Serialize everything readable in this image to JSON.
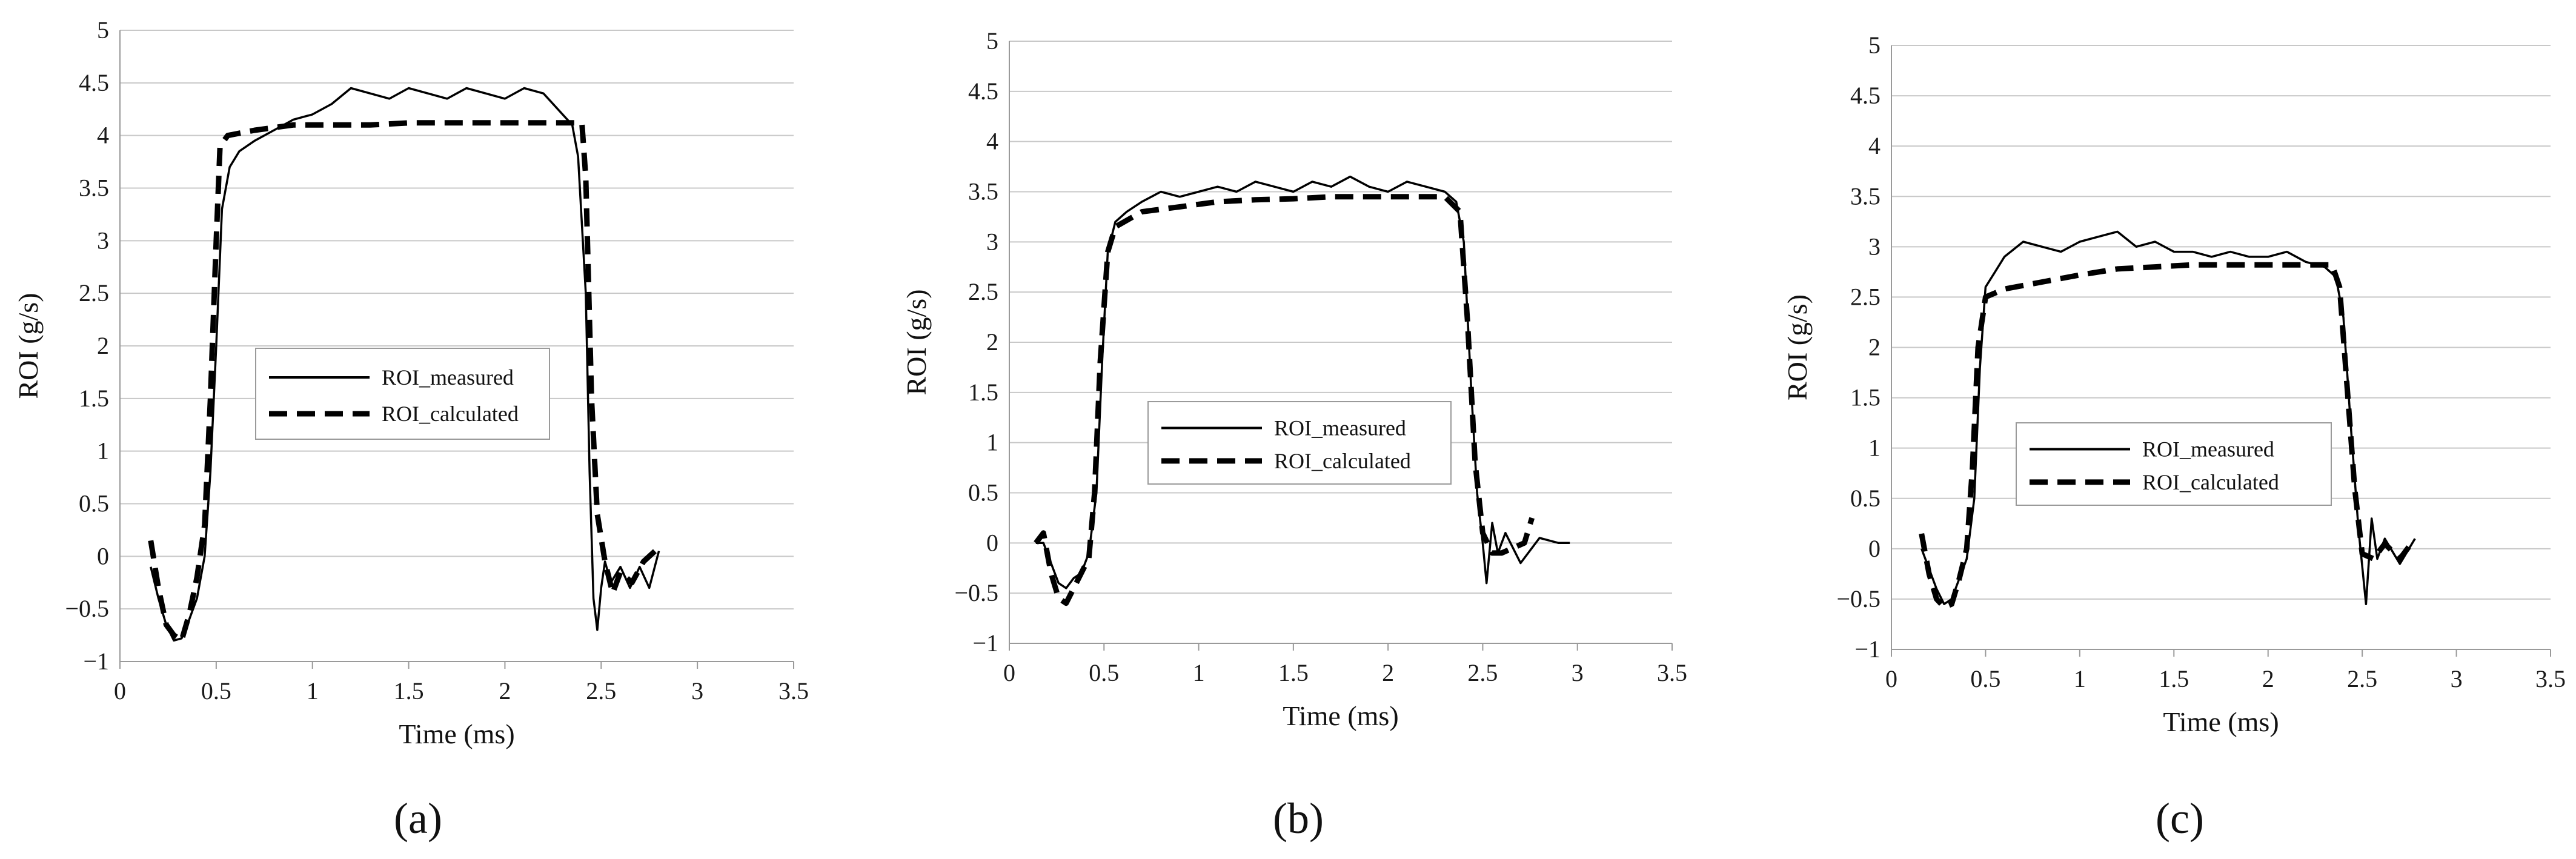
{
  "figure_captions": [
    "(a)",
    "(b)",
    "(c)"
  ],
  "chart_data": [
    {
      "type": "line",
      "panel": "a",
      "caption": "(a)",
      "xlabel": "Time (ms)",
      "ylabel": "ROI (g/s)",
      "xlim": [
        0,
        3.5
      ],
      "ylim": [
        -1,
        5
      ],
      "xticks": [
        0,
        0.5,
        1,
        1.5,
        2,
        2.5,
        3,
        3.5
      ],
      "yticks": [
        -1,
        -0.5,
        0,
        0.5,
        1,
        1.5,
        2,
        2.5,
        3,
        3.5,
        4,
        4.5,
        5
      ],
      "xtick_labels": [
        "0",
        "0.5",
        "1",
        "1.5",
        "2",
        "2.5",
        "3",
        "3.5"
      ],
      "ytick_labels": [
        "−1",
        "−0.5",
        "0",
        "0.5",
        "1",
        "1.5",
        "2",
        "2.5",
        "3",
        "3.5",
        "4",
        "4.5",
        "5"
      ],
      "grid": "horizontal",
      "legend": [
        "ROI_measured",
        "ROI_calculated"
      ],
      "legend_position": "center-left",
      "series": [
        {
          "name": "ROI_measured",
          "style": "solid",
          "points": [
            [
              0.16,
              -0.1
            ],
            [
              0.2,
              -0.4
            ],
            [
              0.24,
              -0.65
            ],
            [
              0.28,
              -0.8
            ],
            [
              0.32,
              -0.78
            ],
            [
              0.36,
              -0.6
            ],
            [
              0.4,
              -0.4
            ],
            [
              0.44,
              0.0
            ],
            [
              0.47,
              0.8
            ],
            [
              0.5,
              2.0
            ],
            [
              0.53,
              3.3
            ],
            [
              0.57,
              3.7
            ],
            [
              0.62,
              3.85
            ],
            [
              0.7,
              3.95
            ],
            [
              0.8,
              4.05
            ],
            [
              0.9,
              4.15
            ],
            [
              1.0,
              4.2
            ],
            [
              1.1,
              4.3
            ],
            [
              1.2,
              4.45
            ],
            [
              1.3,
              4.4
            ],
            [
              1.4,
              4.35
            ],
            [
              1.5,
              4.45
            ],
            [
              1.6,
              4.4
            ],
            [
              1.7,
              4.35
            ],
            [
              1.8,
              4.45
            ],
            [
              1.9,
              4.4
            ],
            [
              2.0,
              4.35
            ],
            [
              2.1,
              4.45
            ],
            [
              2.2,
              4.4
            ],
            [
              2.3,
              4.2
            ],
            [
              2.35,
              4.1
            ],
            [
              2.38,
              3.8
            ],
            [
              2.42,
              2.5
            ],
            [
              2.44,
              0.8
            ],
            [
              2.46,
              -0.4
            ],
            [
              2.48,
              -0.7
            ],
            [
              2.5,
              -0.3
            ],
            [
              2.52,
              -0.05
            ],
            [
              2.55,
              -0.25
            ],
            [
              2.6,
              -0.1
            ],
            [
              2.65,
              -0.3
            ],
            [
              2.7,
              -0.1
            ],
            [
              2.75,
              -0.3
            ],
            [
              2.8,
              0.05
            ]
          ]
        },
        {
          "name": "ROI_calculated",
          "style": "dashed",
          "points": [
            [
              0.16,
              0.15
            ],
            [
              0.2,
              -0.3
            ],
            [
              0.24,
              -0.65
            ],
            [
              0.28,
              -0.75
            ],
            [
              0.32,
              -0.8
            ],
            [
              0.36,
              -0.55
            ],
            [
              0.4,
              -0.2
            ],
            [
              0.44,
              0.3
            ],
            [
              0.47,
              1.5
            ],
            [
              0.5,
              3.0
            ],
            [
              0.52,
              3.9
            ],
            [
              0.56,
              4.0
            ],
            [
              0.7,
              4.05
            ],
            [
              0.9,
              4.1
            ],
            [
              1.1,
              4.1
            ],
            [
              1.3,
              4.1
            ],
            [
              1.5,
              4.12
            ],
            [
              1.7,
              4.12
            ],
            [
              1.9,
              4.12
            ],
            [
              2.1,
              4.12
            ],
            [
              2.3,
              4.12
            ],
            [
              2.4,
              4.12
            ],
            [
              2.42,
              3.6
            ],
            [
              2.45,
              1.5
            ],
            [
              2.48,
              0.4
            ],
            [
              2.52,
              -0.05
            ],
            [
              2.56,
              -0.35
            ],
            [
              2.6,
              -0.15
            ],
            [
              2.66,
              -0.25
            ],
            [
              2.72,
              -0.05
            ],
            [
              2.78,
              0.05
            ]
          ]
        }
      ]
    },
    {
      "type": "line",
      "panel": "b",
      "caption": "(b)",
      "xlabel": "Time (ms)",
      "ylabel": "ROI (g/s)",
      "xlim": [
        0,
        3.5
      ],
      "ylim": [
        -1,
        5
      ],
      "xticks": [
        0,
        0.5,
        1,
        1.5,
        2,
        2.5,
        3,
        3.5
      ],
      "yticks": [
        -1,
        -0.5,
        0,
        0.5,
        1,
        1.5,
        2,
        2.5,
        3,
        3.5,
        4,
        4.5,
        5
      ],
      "xtick_labels": [
        "0",
        "0.5",
        "1",
        "1.5",
        "2",
        "2.5",
        "3",
        "3.5"
      ],
      "ytick_labels": [
        "−1",
        "−0.5",
        "0",
        "0.5",
        "1",
        "1.5",
        "2",
        "2.5",
        "3",
        "3.5",
        "4",
        "4.5",
        "5"
      ],
      "grid": "horizontal",
      "legend": [
        "ROI_measured",
        "ROI_calculated"
      ],
      "legend_position": "center",
      "series": [
        {
          "name": "ROI_measured",
          "style": "solid",
          "points": [
            [
              0.14,
              0.0
            ],
            [
              0.18,
              0.0
            ],
            [
              0.22,
              -0.2
            ],
            [
              0.26,
              -0.4
            ],
            [
              0.3,
              -0.45
            ],
            [
              0.34,
              -0.35
            ],
            [
              0.38,
              -0.3
            ],
            [
              0.42,
              -0.1
            ],
            [
              0.46,
              0.5
            ],
            [
              0.49,
              1.8
            ],
            [
              0.52,
              2.9
            ],
            [
              0.56,
              3.2
            ],
            [
              0.62,
              3.3
            ],
            [
              0.7,
              3.4
            ],
            [
              0.8,
              3.5
            ],
            [
              0.9,
              3.45
            ],
            [
              1.0,
              3.5
            ],
            [
              1.1,
              3.55
            ],
            [
              1.2,
              3.5
            ],
            [
              1.3,
              3.6
            ],
            [
              1.4,
              3.55
            ],
            [
              1.5,
              3.5
            ],
            [
              1.6,
              3.6
            ],
            [
              1.7,
              3.55
            ],
            [
              1.8,
              3.65
            ],
            [
              1.9,
              3.55
            ],
            [
              2.0,
              3.5
            ],
            [
              2.1,
              3.6
            ],
            [
              2.2,
              3.55
            ],
            [
              2.3,
              3.5
            ],
            [
              2.36,
              3.4
            ],
            [
              2.4,
              3.0
            ],
            [
              2.44,
              1.5
            ],
            [
              2.47,
              0.5
            ],
            [
              2.5,
              0.0
            ],
            [
              2.52,
              -0.4
            ],
            [
              2.55,
              0.2
            ],
            [
              2.58,
              -0.1
            ],
            [
              2.62,
              0.1
            ],
            [
              2.7,
              -0.2
            ],
            [
              2.8,
              0.05
            ],
            [
              2.9,
              0.0
            ],
            [
              2.96,
              0.0
            ]
          ]
        },
        {
          "name": "ROI_calculated",
          "style": "dashed",
          "points": [
            [
              0.14,
              0.0
            ],
            [
              0.18,
              0.1
            ],
            [
              0.22,
              -0.3
            ],
            [
              0.26,
              -0.55
            ],
            [
              0.3,
              -0.6
            ],
            [
              0.34,
              -0.45
            ],
            [
              0.38,
              -0.3
            ],
            [
              0.42,
              -0.15
            ],
            [
              0.45,
              0.5
            ],
            [
              0.48,
              1.8
            ],
            [
              0.52,
              2.9
            ],
            [
              0.56,
              3.15
            ],
            [
              0.7,
              3.3
            ],
            [
              0.9,
              3.35
            ],
            [
              1.1,
              3.4
            ],
            [
              1.3,
              3.42
            ],
            [
              1.5,
              3.43
            ],
            [
              1.7,
              3.45
            ],
            [
              1.9,
              3.45
            ],
            [
              2.1,
              3.45
            ],
            [
              2.3,
              3.45
            ],
            [
              2.38,
              3.3
            ],
            [
              2.42,
              2.2
            ],
            [
              2.46,
              0.8
            ],
            [
              2.5,
              0.1
            ],
            [
              2.55,
              -0.1
            ],
            [
              2.6,
              -0.1
            ],
            [
              2.66,
              -0.05
            ],
            [
              2.72,
              0.0
            ],
            [
              2.76,
              0.25
            ]
          ]
        }
      ]
    },
    {
      "type": "line",
      "panel": "c",
      "caption": "(c)",
      "xlabel": "Time (ms)",
      "ylabel": "ROI (g/s)",
      "xlim": [
        0,
        3.5
      ],
      "ylim": [
        -1,
        5
      ],
      "xticks": [
        0,
        0.5,
        1,
        1.5,
        2,
        2.5,
        3,
        3.5
      ],
      "yticks": [
        -1,
        -0.5,
        0,
        0.5,
        1,
        1.5,
        2,
        2.5,
        3,
        3.5,
        4,
        4.5,
        5
      ],
      "xtick_labels": [
        "0",
        "0.5",
        "1",
        "1.5",
        "2",
        "2.5",
        "3",
        "3.5"
      ],
      "ytick_labels": [
        "−1",
        "−0.5",
        "0",
        "0.5",
        "1",
        "1.5",
        "2",
        "2.5",
        "3",
        "3.5",
        "4",
        "4.5",
        "5"
      ],
      "grid": "horizontal",
      "legend": [
        "ROI_measured",
        "ROI_calculated"
      ],
      "legend_position": "center",
      "series": [
        {
          "name": "ROI_measured",
          "style": "solid",
          "points": [
            [
              0.16,
              0.0
            ],
            [
              0.2,
              -0.2
            ],
            [
              0.24,
              -0.4
            ],
            [
              0.28,
              -0.55
            ],
            [
              0.32,
              -0.5
            ],
            [
              0.36,
              -0.3
            ],
            [
              0.4,
              -0.1
            ],
            [
              0.44,
              0.5
            ],
            [
              0.47,
              1.8
            ],
            [
              0.5,
              2.6
            ],
            [
              0.55,
              2.75
            ],
            [
              0.6,
              2.9
            ],
            [
              0.7,
              3.05
            ],
            [
              0.8,
              3.0
            ],
            [
              0.9,
              2.95
            ],
            [
              1.0,
              3.05
            ],
            [
              1.1,
              3.1
            ],
            [
              1.2,
              3.15
            ],
            [
              1.3,
              3.0
            ],
            [
              1.4,
              3.05
            ],
            [
              1.5,
              2.95
            ],
            [
              1.6,
              2.95
            ],
            [
              1.7,
              2.9
            ],
            [
              1.8,
              2.95
            ],
            [
              1.9,
              2.9
            ],
            [
              2.0,
              2.9
            ],
            [
              2.1,
              2.95
            ],
            [
              2.2,
              2.85
            ],
            [
              2.3,
              2.8
            ],
            [
              2.36,
              2.7
            ],
            [
              2.4,
              2.3
            ],
            [
              2.44,
              1.2
            ],
            [
              2.48,
              0.2
            ],
            [
              2.52,
              -0.55
            ],
            [
              2.55,
              0.3
            ],
            [
              2.58,
              -0.1
            ],
            [
              2.62,
              0.1
            ],
            [
              2.7,
              -0.15
            ],
            [
              2.78,
              0.1
            ]
          ]
        },
        {
          "name": "ROI_calculated",
          "style": "dashed",
          "points": [
            [
              0.16,
              0.15
            ],
            [
              0.2,
              -0.25
            ],
            [
              0.24,
              -0.5
            ],
            [
              0.28,
              -0.58
            ],
            [
              0.32,
              -0.55
            ],
            [
              0.36,
              -0.3
            ],
            [
              0.4,
              0.0
            ],
            [
              0.43,
              0.8
            ],
            [
              0.46,
              2.0
            ],
            [
              0.5,
              2.5
            ],
            [
              0.6,
              2.58
            ],
            [
              0.8,
              2.65
            ],
            [
              1.0,
              2.72
            ],
            [
              1.2,
              2.78
            ],
            [
              1.4,
              2.8
            ],
            [
              1.6,
              2.82
            ],
            [
              1.8,
              2.82
            ],
            [
              2.0,
              2.82
            ],
            [
              2.2,
              2.82
            ],
            [
              2.34,
              2.82
            ],
            [
              2.38,
              2.6
            ],
            [
              2.42,
              1.6
            ],
            [
              2.46,
              0.6
            ],
            [
              2.5,
              -0.05
            ],
            [
              2.56,
              -0.1
            ],
            [
              2.62,
              0.05
            ],
            [
              2.7,
              -0.1
            ],
            [
              2.76,
              0.05
            ]
          ]
        }
      ]
    }
  ]
}
